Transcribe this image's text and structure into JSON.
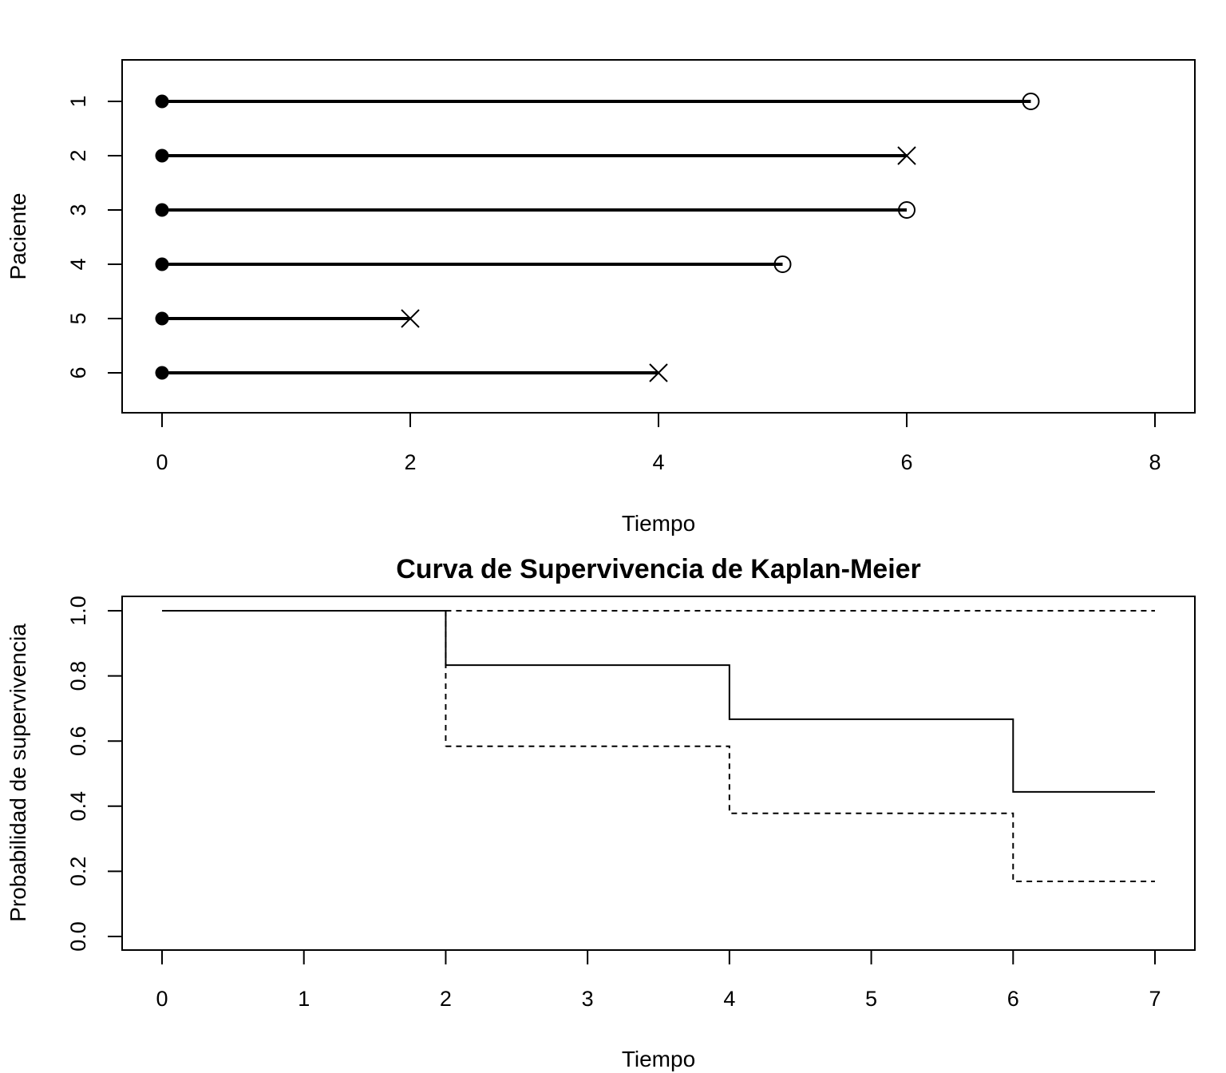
{
  "chart_data": [
    {
      "type": "scatter",
      "subtype": "patient-timeline",
      "title": "",
      "xlabel": "Tiempo",
      "ylabel": "Paciente",
      "xlim": [
        0,
        8
      ],
      "xticks": [
        0,
        2,
        4,
        6,
        8
      ],
      "ylim": [
        0.25,
        6.75
      ],
      "yticks": [
        1,
        2,
        3,
        4,
        5,
        6
      ],
      "y_reversed": true,
      "grid": false,
      "patients": [
        {
          "id": 1,
          "label": "1",
          "start": 0,
          "end": 7,
          "marker": "circle"
        },
        {
          "id": 2,
          "label": "2",
          "start": 0,
          "end": 6,
          "marker": "x"
        },
        {
          "id": 3,
          "label": "3",
          "start": 0,
          "end": 6,
          "marker": "circle"
        },
        {
          "id": 4,
          "label": "4",
          "start": 0,
          "end": 5,
          "marker": "circle"
        },
        {
          "id": 5,
          "label": "5",
          "start": 0,
          "end": 2,
          "marker": "x"
        },
        {
          "id": 6,
          "label": "6",
          "start": 0,
          "end": 4,
          "marker": "x"
        }
      ]
    },
    {
      "type": "line",
      "subtype": "step",
      "title": "Curva de Supervivencia de Kaplan-Meier",
      "xlabel": "Tiempo",
      "ylabel": "Probabilidad de supervivencia",
      "xlim": [
        0,
        7
      ],
      "xticks": [
        0,
        1,
        2,
        3,
        4,
        5,
        6,
        7
      ],
      "ylim": [
        0,
        1
      ],
      "yticks": [
        "0.0",
        "0.2",
        "0.4",
        "0.6",
        "0.8",
        "1.0"
      ],
      "grid": false,
      "series": [
        {
          "style": "solid",
          "x": [
            0,
            2,
            4,
            6,
            7
          ],
          "y": [
            1.0,
            0.833,
            0.667,
            0.444,
            0.444
          ]
        },
        {
          "style": "dashed",
          "x": [
            2,
            4,
            6,
            7
          ],
          "y": [
            1.0,
            1.0,
            1.0,
            1.0
          ]
        },
        {
          "style": "dashed",
          "x": [
            2,
            4,
            6,
            7
          ],
          "y": [
            0.584,
            0.378,
            0.169,
            0.169
          ]
        }
      ]
    }
  ]
}
